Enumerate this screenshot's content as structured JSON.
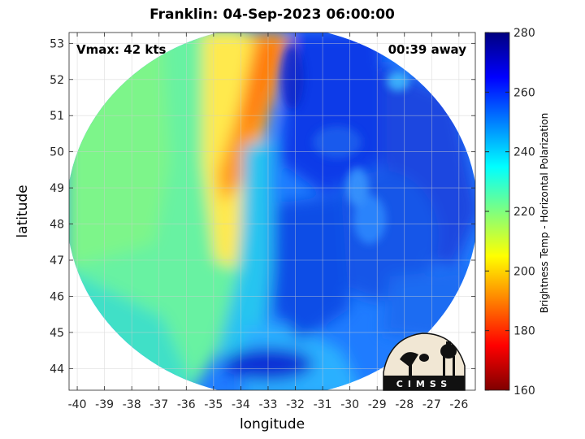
{
  "chart_data": {
    "type": "heatmap",
    "title": "Franklin: 04-Sep-2023 06:00:00",
    "annotations": {
      "vmax": "Vmax: 42 kts",
      "time_offset": "00:39 away"
    },
    "xlabel": "longitude",
    "ylabel": "latitude",
    "xlim": [
      -40.3,
      -25.4
    ],
    "ylim": [
      43.4,
      53.3
    ],
    "xticks": [
      -40,
      -39,
      -38,
      -37,
      -36,
      -35,
      -34,
      -33,
      -32,
      -31,
      -30,
      -29,
      -28,
      -27,
      -26
    ],
    "yticks": [
      44,
      45,
      46,
      47,
      48,
      49,
      50,
      51,
      52,
      53
    ],
    "grid": true,
    "colorbar": {
      "label": "Brightness Temp - Horizontal Polarization",
      "range": [
        160,
        280
      ],
      "ticks": [
        160,
        180,
        200,
        220,
        240,
        260,
        280
      ],
      "colormap": "jet"
    },
    "features": [
      {
        "kind": "warm-band",
        "approx_lon": -34.3,
        "lat_range": [
          48.3,
          53.3
        ],
        "value": 198
      },
      {
        "kind": "cold-cloud-region",
        "approx_lon_range": [
          -33,
          -26
        ],
        "value": 258
      },
      {
        "kind": "storm-center",
        "approx_lon": -28.5,
        "approx_lat": 47.5,
        "value": 250
      }
    ]
  },
  "logo": {
    "text": "CIMSS"
  }
}
